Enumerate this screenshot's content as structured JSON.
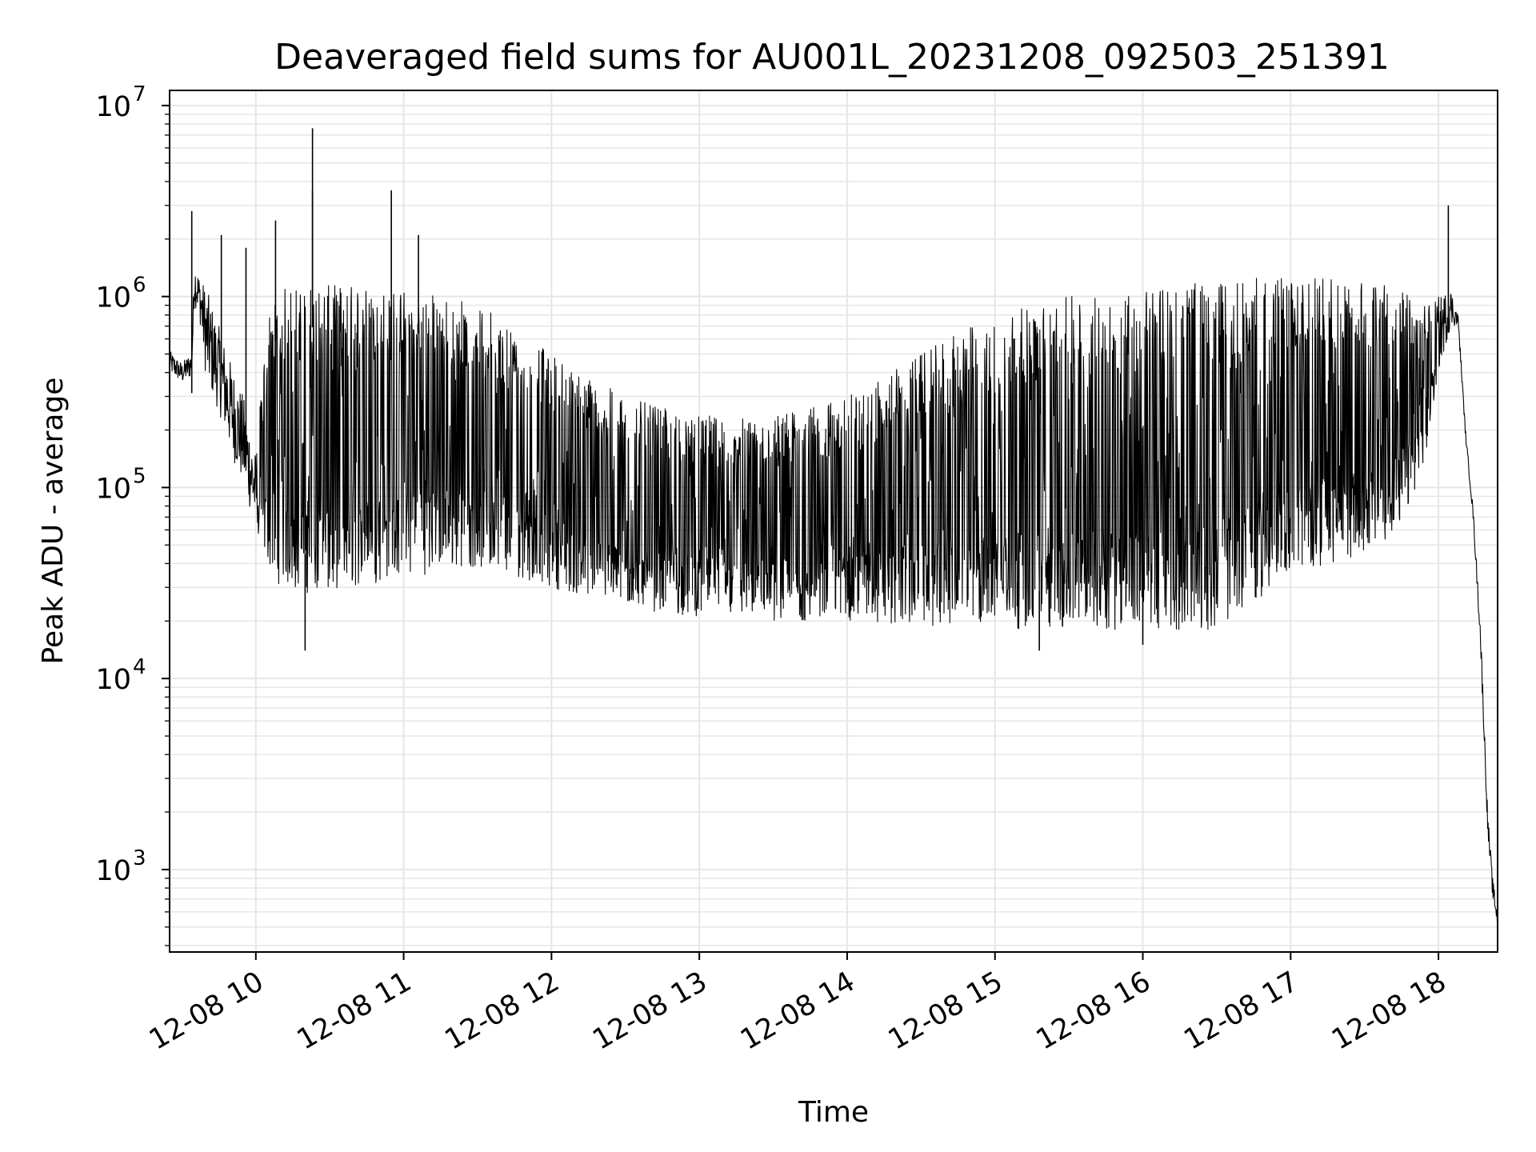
{
  "chart_data": {
    "type": "line",
    "title": "Deaveraged field sums for AU001L_20231208_092503_251391",
    "xlabel": "Time",
    "ylabel": "Peak ADU - average",
    "yscale": "log",
    "ylim": [
      370,
      12000000
    ],
    "xlim": [
      "2023-12-08 09:25",
      "2023-12-08 18:24"
    ],
    "grid": true,
    "line_color": "#000000",
    "grid_color": "#e6e6e6",
    "x_ticks": [
      {
        "value": "2023-12-08 10:00",
        "label": "12-08 10"
      },
      {
        "value": "2023-12-08 11:00",
        "label": "12-08 11"
      },
      {
        "value": "2023-12-08 12:00",
        "label": "12-08 12"
      },
      {
        "value": "2023-12-08 13:00",
        "label": "12-08 13"
      },
      {
        "value": "2023-12-08 14:00",
        "label": "12-08 14"
      },
      {
        "value": "2023-12-08 15:00",
        "label": "12-08 15"
      },
      {
        "value": "2023-12-08 16:00",
        "label": "12-08 16"
      },
      {
        "value": "2023-12-08 17:00",
        "label": "12-08 17"
      },
      {
        "value": "2023-12-08 18:00",
        "label": "12-08 18"
      }
    ],
    "y_ticks": [
      {
        "value": 1000,
        "base": "10",
        "exp": "3"
      },
      {
        "value": 10000,
        "base": "10",
        "exp": "4"
      },
      {
        "value": 100000,
        "base": "10",
        "exp": "5"
      },
      {
        "value": 1000000,
        "base": "10",
        "exp": "6"
      },
      {
        "value": 10000000,
        "base": "10",
        "exp": "7"
      }
    ],
    "series": [
      {
        "x": [
          "2023-12-08 09:25",
          "2023-12-08 09:30",
          "2023-12-08 09:34",
          "2023-12-08 09:35",
          "2023-12-08 09:37",
          "2023-12-08 09:40",
          "2023-12-08 09:45",
          "2023-12-08 09:50",
          "2023-12-08 09:55",
          "2023-12-08 10:00",
          "2023-12-08 10:05",
          "2023-12-08 10:10",
          "2023-12-08 10:20",
          "2023-12-08 10:30",
          "2023-12-08 10:40",
          "2023-12-08 10:50",
          "2023-12-08 11:00",
          "2023-12-08 11:10",
          "2023-12-08 11:20",
          "2023-12-08 11:30",
          "2023-12-08 11:40",
          "2023-12-08 11:50",
          "2023-12-08 12:00",
          "2023-12-08 12:15",
          "2023-12-08 12:30",
          "2023-12-08 12:45",
          "2023-12-08 13:00",
          "2023-12-08 13:15",
          "2023-12-08 13:30",
          "2023-12-08 13:45",
          "2023-12-08 14:00",
          "2023-12-08 14:15",
          "2023-12-08 14:30",
          "2023-12-08 14:45",
          "2023-12-08 15:00",
          "2023-12-08 15:15",
          "2023-12-08 15:30",
          "2023-12-08 15:45",
          "2023-12-08 16:00",
          "2023-12-08 16:15",
          "2023-12-08 16:30",
          "2023-12-08 16:45",
          "2023-12-08 17:00",
          "2023-12-08 17:15",
          "2023-12-08 17:30",
          "2023-12-08 17:45",
          "2023-12-08 17:55",
          "2023-12-08 18:00",
          "2023-12-08 18:05",
          "2023-12-08 18:08",
          "2023-12-08 18:11",
          "2023-12-08 18:14",
          "2023-12-08 18:17",
          "2023-12-08 18:20",
          "2023-12-08 18:22",
          "2023-12-08 18:24"
        ],
        "upper": [
          520000,
          450000,
          520000,
          1600000,
          1300000,
          1100000,
          700000,
          450000,
          300000,
          150000,
          800000,
          1100000,
          1150000,
          1150000,
          1150000,
          1100000,
          1100000,
          1050000,
          1000000,
          900000,
          800000,
          650000,
          500000,
          380000,
          300000,
          260000,
          240000,
          230000,
          240000,
          260000,
          300000,
          380000,
          500000,
          650000,
          800000,
          900000,
          1000000,
          1050000,
          1100000,
          1150000,
          1200000,
          1250000,
          1250000,
          1250000,
          1200000,
          1100000,
          900000,
          1000000,
          1100000,
          800000,
          200000,
          80000,
          20000,
          2000,
          900,
          600
        ],
        "lower": [
          400000,
          350000,
          380000,
          900000,
          800000,
          350000,
          250000,
          150000,
          100000,
          60000,
          40000,
          30000,
          28000,
          28000,
          30000,
          32000,
          35000,
          35000,
          38000,
          38000,
          35000,
          33000,
          30000,
          26000,
          24000,
          22000,
          21000,
          21000,
          20000,
          20000,
          20000,
          19000,
          19000,
          18500,
          18500,
          18000,
          18000,
          18000,
          18000,
          18000,
          18000,
          25000,
          35000,
          40000,
          45000,
          60000,
          150000,
          400000,
          700000,
          700000,
          180000,
          70000,
          15000,
          1500,
          700,
          500
        ],
        "spikes": [
          {
            "x": "2023-12-08 09:34",
            "y": 2800000
          },
          {
            "x": "2023-12-08 09:46",
            "y": 2100000
          },
          {
            "x": "2023-12-08 09:56",
            "y": 1800000
          },
          {
            "x": "2023-12-08 10:08",
            "y": 2500000
          },
          {
            "x": "2023-12-08 10:23",
            "y": 7600000
          },
          {
            "x": "2023-12-08 10:23",
            "y": 3600000
          },
          {
            "x": "2023-12-08 10:55",
            "y": 3600000
          },
          {
            "x": "2023-12-08 11:06",
            "y": 2100000
          },
          {
            "x": "2023-12-08 18:04",
            "y": 3000000
          },
          {
            "x": "2023-12-08 10:20",
            "y": 14000
          },
          {
            "x": "2023-12-08 15:18",
            "y": 14000
          },
          {
            "x": "2023-12-08 16:00",
            "y": 15000
          }
        ]
      }
    ]
  }
}
